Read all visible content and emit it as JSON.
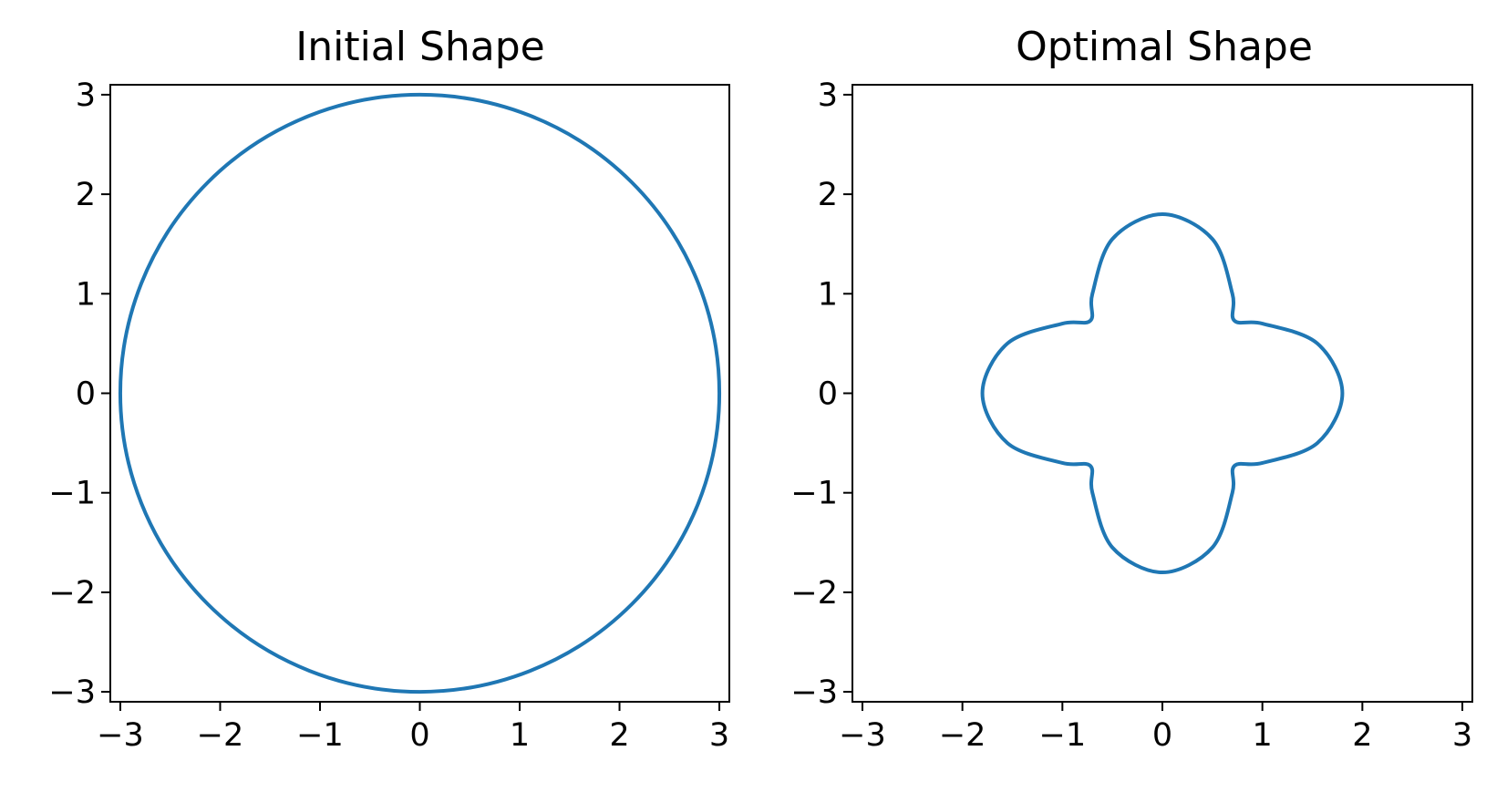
{
  "chart_data": [
    {
      "type": "line",
      "title": "Initial Shape",
      "xlabel": "",
      "ylabel": "",
      "xlim": [
        -3.1,
        3.1
      ],
      "ylim": [
        -3.1,
        3.1
      ],
      "xticks": [
        -3,
        -2,
        -1,
        0,
        1,
        2,
        3
      ],
      "yticks": [
        -3,
        -2,
        -1,
        0,
        1,
        2,
        3
      ],
      "xtick_labels": [
        "−3",
        "−2",
        "−1",
        "0",
        "1",
        "2",
        "3"
      ],
      "ytick_labels": [
        "−3",
        "−2",
        "−1",
        "0",
        "1",
        "2",
        "3"
      ],
      "grid": false,
      "aspect": "equal",
      "series": [
        {
          "color": "#1f77b4",
          "shape": "circle",
          "radius": 3,
          "points": [
            [
              3,
              0
            ],
            [
              2.12,
              2.12
            ],
            [
              0,
              3
            ],
            [
              -2.12,
              2.12
            ],
            [
              -3,
              0
            ],
            [
              -2.12,
              -2.12
            ],
            [
              0,
              -3
            ],
            [
              2.12,
              -2.12
            ]
          ]
        }
      ]
    },
    {
      "type": "line",
      "title": "Optimal Shape",
      "xlabel": "",
      "ylabel": "",
      "xlim": [
        -3.1,
        3.1
      ],
      "ylim": [
        -3.1,
        3.1
      ],
      "xticks": [
        -3,
        -2,
        -1,
        0,
        1,
        2,
        3
      ],
      "yticks": [
        -3,
        -2,
        -1,
        0,
        1,
        2,
        3
      ],
      "xtick_labels": [
        "−3",
        "−2",
        "−1",
        "0",
        "1",
        "2",
        "3"
      ],
      "ytick_labels": [
        "−3",
        "−2",
        "−1",
        "0",
        "1",
        "2",
        "3"
      ],
      "grid": false,
      "aspect": "equal",
      "series": [
        {
          "color": "#1f77b4",
          "shape": "four-lobed closed curve",
          "points": [
            [
              1.8,
              0
            ],
            [
              1.55,
              0.5
            ],
            [
              1.0,
              0.7
            ],
            [
              0.72,
              0.73
            ],
            [
              0.7,
              1.0
            ],
            [
              0.5,
              1.55
            ],
            [
              0,
              1.8
            ],
            [
              -0.5,
              1.55
            ],
            [
              -0.7,
              1.0
            ],
            [
              -0.72,
              0.73
            ],
            [
              -1.0,
              0.7
            ],
            [
              -1.55,
              0.5
            ],
            [
              -1.8,
              0
            ],
            [
              -1.55,
              -0.5
            ],
            [
              -1.0,
              -0.7
            ],
            [
              -0.72,
              -0.73
            ],
            [
              -0.7,
              -1.0
            ],
            [
              -0.5,
              -1.55
            ],
            [
              0,
              -1.8
            ],
            [
              0.5,
              -1.55
            ],
            [
              0.7,
              -1.0
            ],
            [
              0.72,
              -0.73
            ],
            [
              1.0,
              -0.7
            ],
            [
              1.55,
              -0.5
            ],
            [
              1.8,
              0
            ]
          ]
        }
      ]
    }
  ]
}
